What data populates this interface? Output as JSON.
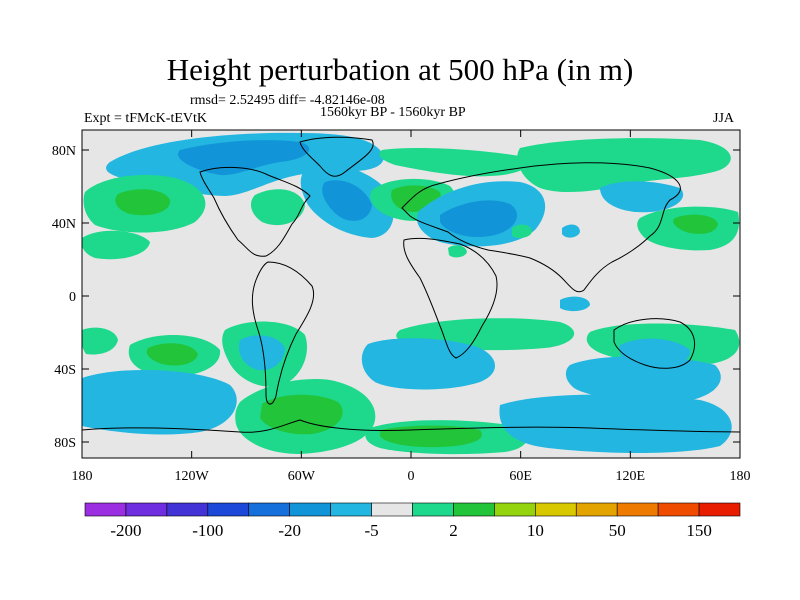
{
  "title": "Height perturbation at 500 hPa (in m)",
  "stats": {
    "rmsd_diff": "rmsd= 2.52495 diff= -4.82146e-08",
    "experiment": "Expt = tFMcK-tEVtK",
    "period": "1560kyr BP - 1560kyr BP",
    "season": "JJA"
  },
  "axes": {
    "lat_labels": [
      "80N",
      "40N",
      "0",
      "40S",
      "80S"
    ],
    "lon_labels": [
      "180",
      "120W",
      "60W",
      "0",
      "60E",
      "120E",
      "180"
    ]
  },
  "colorbar": {
    "labels": [
      "-200",
      "-100",
      "-20",
      "-5",
      "2",
      "10",
      "50",
      "150"
    ],
    "colors": [
      "#9a2ee0",
      "#6f2ee0",
      "#4233d6",
      "#1b48d9",
      "#1670dc",
      "#1295d8",
      "#22b6e0",
      "#e6e6e6",
      "#1ed98c",
      "#22c43a",
      "#93d40f",
      "#d8c800",
      "#e3a400",
      "#ee7b00",
      "#f04c00",
      "#e81d00"
    ]
  },
  "colors": {
    "background": "#e6e6e6",
    "light_blue": "#22b6e0",
    "mid_blue": "#1295d8",
    "deep_blue": "#1670dc",
    "teal_green": "#1ed98c",
    "green": "#22c43a",
    "coast": "#000000"
  }
}
